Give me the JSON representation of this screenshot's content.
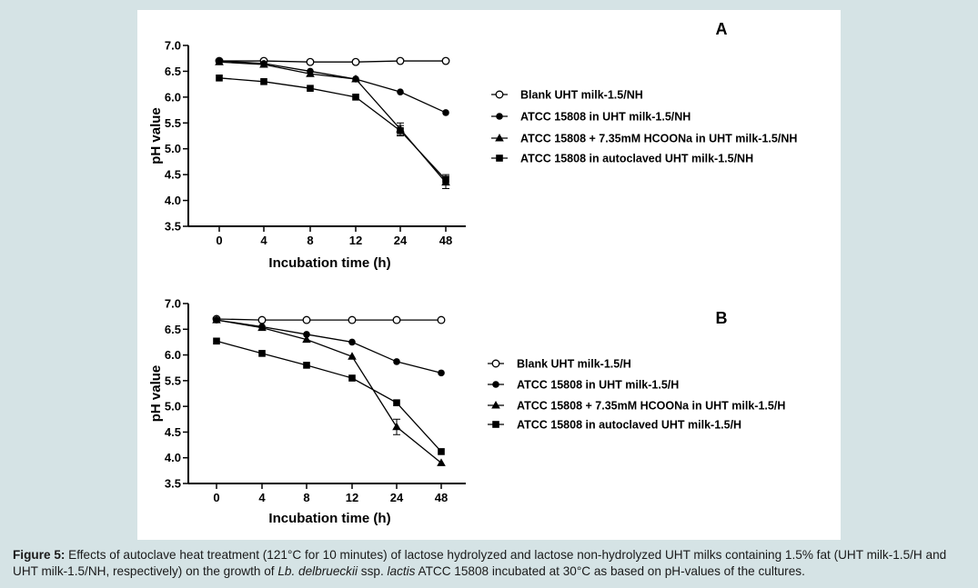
{
  "colors": {
    "background": "#d5e3e5",
    "panel": "#ffffff",
    "ink": "#000000"
  },
  "chart_data": [
    {
      "type": "line",
      "panel_label": "A",
      "xlabel": "Incubation time (h)",
      "ylabel": "pH value",
      "categories": [
        "0",
        "4",
        "8",
        "12",
        "24",
        "48"
      ],
      "ylim": [
        3.5,
        7.0
      ],
      "yticks": [
        "7.0",
        "6.5",
        "6.0",
        "5.5",
        "5.0",
        "4.5",
        "4.0",
        "3.5"
      ],
      "grid": false,
      "legend_position": "right",
      "series": [
        {
          "name": "Blank UHT milk-1.5/NH",
          "marker": "open-circle",
          "values": [
            6.7,
            6.7,
            6.68,
            6.68,
            6.7,
            6.7
          ]
        },
        {
          "name": "ATCC 15808 in UHT milk-1.5/NH",
          "marker": "filled-circle",
          "values": [
            6.7,
            6.65,
            6.5,
            6.35,
            6.1,
            5.7
          ]
        },
        {
          "name": "ATCC 15808 + 7.35mM HCOONa in UHT milk-1.5/NH",
          "marker": "triangle",
          "values": [
            6.68,
            6.63,
            6.45,
            6.35,
            5.38,
            4.35
          ],
          "error": [
            0,
            0,
            0,
            0,
            0.12,
            0.12
          ]
        },
        {
          "name": "ATCC 15808 in autoclaved UHT milk-1.5/NH",
          "marker": "square",
          "values": [
            6.37,
            6.3,
            6.17,
            6.0,
            5.35,
            4.4
          ],
          "error": [
            0,
            0,
            0,
            0,
            0.1,
            0.1
          ]
        }
      ]
    },
    {
      "type": "line",
      "panel_label": "B",
      "xlabel": "Incubation time (h)",
      "ylabel": "pH value",
      "categories": [
        "0",
        "4",
        "8",
        "12",
        "24",
        "48"
      ],
      "ylim": [
        3.5,
        7.0
      ],
      "yticks": [
        "7.0",
        "6.5",
        "6.0",
        "5.5",
        "5.0",
        "4.5",
        "4.0",
        "3.5"
      ],
      "grid": false,
      "legend_position": "right",
      "series": [
        {
          "name": "Blank UHT milk-1.5/H",
          "marker": "open-circle",
          "values": [
            6.7,
            6.68,
            6.68,
            6.68,
            6.68,
            6.68
          ]
        },
        {
          "name": "ATCC 15808 in UHT milk-1.5/H",
          "marker": "filled-circle",
          "values": [
            6.68,
            6.55,
            6.4,
            6.25,
            5.87,
            5.65
          ]
        },
        {
          "name": "ATCC 15808 + 7.35mM HCOONa in UHT milk-1.5/H",
          "marker": "triangle",
          "values": [
            6.68,
            6.53,
            6.3,
            5.97,
            4.6,
            3.9
          ],
          "error": [
            0,
            0,
            0,
            0,
            0.15,
            0
          ]
        },
        {
          "name": "ATCC 15808 in autoclaved UHT milk-1.5/H",
          "marker": "square",
          "values": [
            6.27,
            6.03,
            5.8,
            5.55,
            5.07,
            4.12
          ]
        }
      ]
    }
  ],
  "caption": {
    "label": "Figure 5:",
    "text_before_species": " Effects of autoclave heat treatment (121°C for 10 minutes) of lactose hydrolyzed and lactose non-hydrolyzed UHT milks containing 1.5% fat (UHT milk-1.5/H and UHT milk-1.5/NH, respectively) on the growth of ",
    "species_genus": "Lb. delbrueckii",
    "species_mid": " ssp. ",
    "species_sub": "lactis",
    "text_after_species": " ATCC 15808 incubated at 30°C as based on pH-values of the cultures."
  }
}
